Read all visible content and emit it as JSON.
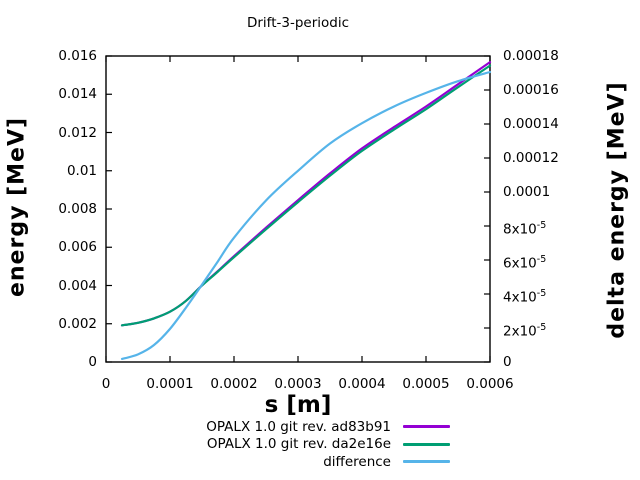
{
  "chart_data": {
    "type": "line",
    "title": "Drift-3-periodic",
    "xlabel": "s [m]",
    "ylabel": "energy [MeV]",
    "y2label": "delta energy [MeV]",
    "xlim": [
      0,
      0.0006
    ],
    "ylim_left": [
      0,
      0.016
    ],
    "ylim_right": [
      0,
      0.00018
    ],
    "grid": false,
    "legend_position": "below-plot-right",
    "x_ticks": [
      {
        "v": 0,
        "t": "0"
      },
      {
        "v": 0.0001,
        "t": "0.0001"
      },
      {
        "v": 0.0002,
        "t": "0.0002"
      },
      {
        "v": 0.0003,
        "t": "0.0003"
      },
      {
        "v": 0.0004,
        "t": "0.0004"
      },
      {
        "v": 0.0005,
        "t": "0.0005"
      },
      {
        "v": 0.0006,
        "t": "0.0006"
      }
    ],
    "y_ticks_left": [
      {
        "v": 0,
        "t": "0"
      },
      {
        "v": 0.002,
        "t": "0.002"
      },
      {
        "v": 0.004,
        "t": "0.004"
      },
      {
        "v": 0.006,
        "t": "0.006"
      },
      {
        "v": 0.008,
        "t": "0.008"
      },
      {
        "v": 0.01,
        "t": "0.01"
      },
      {
        "v": 0.012,
        "t": "0.012"
      },
      {
        "v": 0.014,
        "t": "0.014"
      },
      {
        "v": 0.016,
        "t": "0.016"
      }
    ],
    "y_ticks_right": [
      {
        "v": 0,
        "t": "0",
        "sup": ""
      },
      {
        "v": 2e-05,
        "t": "2x10",
        "sup": "-5"
      },
      {
        "v": 4e-05,
        "t": "4x10",
        "sup": "-5"
      },
      {
        "v": 6e-05,
        "t": "6x10",
        "sup": "-5"
      },
      {
        "v": 8e-05,
        "t": "8x10",
        "sup": "-5"
      },
      {
        "v": 0.0001,
        "t": "0.0001",
        "sup": ""
      },
      {
        "v": 0.00012,
        "t": "0.00012",
        "sup": ""
      },
      {
        "v": 0.00014,
        "t": "0.00014",
        "sup": ""
      },
      {
        "v": 0.00016,
        "t": "0.00016",
        "sup": ""
      },
      {
        "v": 0.00018,
        "t": "0.00018",
        "sup": ""
      }
    ],
    "series": [
      {
        "name": "OPALX 1.0 git rev. ad83b91",
        "color": "#9400d3",
        "axis": "left",
        "x": [
          2.5e-05,
          5e-05,
          7.5e-05,
          0.0001,
          0.000125,
          0.00015,
          0.000175,
          0.0002,
          0.00025,
          0.0003,
          0.00035,
          0.0004,
          0.00045,
          0.0005,
          0.00055,
          0.0006
        ],
        "y": [
          0.00192,
          0.00205,
          0.00228,
          0.00263,
          0.0032,
          0.00401,
          0.00476,
          0.00553,
          0.00702,
          0.00846,
          0.00986,
          0.01117,
          0.01228,
          0.01336,
          0.01452,
          0.01568
        ]
      },
      {
        "name": "OPALX 1.0 git rev. da2e16e",
        "color": "#009e73",
        "axis": "left",
        "x": [
          2.5e-05,
          5e-05,
          7.5e-05,
          0.0001,
          0.000125,
          0.00015,
          0.000175,
          0.0002,
          0.00025,
          0.0003,
          0.00035,
          0.0004,
          0.00045,
          0.0005,
          0.00055,
          0.0006
        ],
        "y": [
          0.00192,
          0.00205,
          0.00228,
          0.00263,
          0.0032,
          0.004,
          0.00473,
          0.00548,
          0.00694,
          0.00836,
          0.00974,
          0.01104,
          0.01215,
          0.01322,
          0.01437,
          0.0155
        ]
      },
      {
        "name": "difference",
        "color": "#56b4e9",
        "axis": "right",
        "x": [
          2.5e-05,
          5e-05,
          7.5e-05,
          0.0001,
          0.000125,
          0.00015,
          0.000175,
          0.0002,
          0.00025,
          0.0003,
          0.00035,
          0.0004,
          0.00045,
          0.0005,
          0.00055,
          0.0006
        ],
        "y": [
          1.8e-06,
          4.5e-06,
          1e-05,
          1.95e-05,
          3.2e-05,
          4.55e-05,
          5.93e-05,
          7.31e-05,
          9.5e-05,
          0.0001125,
          0.0001285,
          0.0001405,
          0.0001503,
          0.0001583,
          0.0001652,
          0.0001706
        ]
      }
    ],
    "colors": {
      "axis": "#000000",
      "background": "#ffffff",
      "text": "#000000"
    }
  }
}
